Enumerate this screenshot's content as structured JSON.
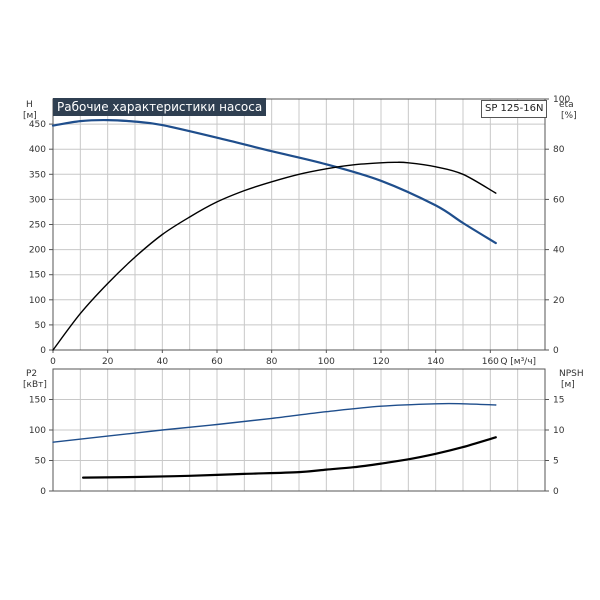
{
  "chart_data": [
    {
      "type": "line",
      "title": "Рабочие характеристики насоса",
      "model": "SP 125-16N",
      "xlabel": "Q [м³/ч]",
      "xlim": [
        0,
        180
      ],
      "x_ticks": [
        0,
        20,
        40,
        60,
        80,
        100,
        120,
        140,
        160
      ],
      "left_axis": {
        "label": "H",
        "unit": "[м]",
        "ylim": [
          0,
          500
        ],
        "ticks": [
          0,
          50,
          100,
          150,
          200,
          250,
          300,
          350,
          400,
          450
        ]
      },
      "right_axis": {
        "label": "eta",
        "unit": "[%]",
        "ylim": [
          0,
          100
        ],
        "ticks": [
          0,
          20,
          40,
          60,
          80,
          100
        ]
      },
      "grid": true,
      "series": [
        {
          "key": "H",
          "axis": "left",
          "color": "#1f4e8c",
          "x": [
            0,
            10,
            20,
            30,
            40,
            60,
            80,
            100,
            120,
            140,
            150,
            162
          ],
          "y": [
            447,
            456,
            458,
            455,
            448,
            423,
            396,
            370,
            337,
            288,
            253,
            213
          ]
        },
        {
          "key": "eta",
          "axis": "right",
          "color": "#000000",
          "x": [
            0,
            10,
            20,
            30,
            40,
            50,
            60,
            70,
            80,
            90,
            100,
            110,
            120,
            125,
            130,
            140,
            150,
            162
          ],
          "y": [
            0,
            14.5,
            26.5,
            37,
            46,
            53,
            59,
            63.5,
            67,
            70,
            72.2,
            73.8,
            74.6,
            74.8,
            74.6,
            73,
            70,
            62.5
          ]
        }
      ]
    },
    {
      "type": "line",
      "xlim": [
        0,
        180
      ],
      "left_axis": {
        "label": "P2",
        "unit": "[кВт]",
        "ylim": [
          0,
          200
        ],
        "ticks": [
          0,
          50,
          100,
          150
        ]
      },
      "right_axis": {
        "label": "NPSH",
        "unit": "[м]",
        "ylim": [
          0,
          20
        ],
        "ticks": [
          0,
          5,
          10,
          15
        ]
      },
      "grid": true,
      "series": [
        {
          "key": "P2",
          "axis": "left",
          "color": "#1f4e8c",
          "x": [
            0,
            20,
            40,
            60,
            80,
            100,
            120,
            140,
            150,
            162
          ],
          "y": [
            80,
            90,
            100,
            109,
            119,
            130,
            139,
            143,
            143,
            141
          ]
        },
        {
          "key": "NPSH",
          "axis": "right",
          "color": "#000000",
          "x": [
            11,
            30,
            50,
            70,
            90,
            100,
            110,
            120,
            130,
            140,
            150,
            162
          ],
          "y": [
            2.2,
            2.3,
            2.5,
            2.8,
            3.1,
            3.5,
            3.9,
            4.5,
            5.2,
            6.1,
            7.2,
            8.8
          ]
        }
      ]
    }
  ]
}
